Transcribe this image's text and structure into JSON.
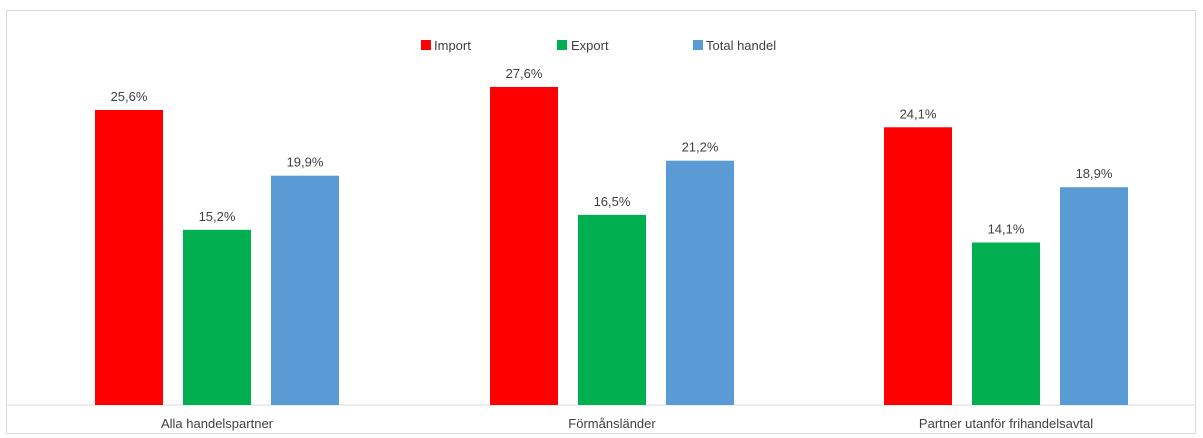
{
  "chart_data": {
    "type": "bar",
    "categories": [
      "Alla handelspartner",
      "Förmånsländer",
      "Partner utanför frihandelsavtal"
    ],
    "series": [
      {
        "name": "Import",
        "values": [
          25.6,
          27.6,
          24.1
        ],
        "labels": [
          "25,6%",
          "27,6%",
          "24,1%"
        ],
        "color": "#ff0000"
      },
      {
        "name": "Export",
        "values": [
          15.2,
          16.5,
          14.1
        ],
        "labels": [
          "15,2%",
          "16,5%",
          "14,1%"
        ],
        "color": "#00b050"
      },
      {
        "name": "Total handel",
        "values": [
          19.9,
          21.2,
          18.9
        ],
        "labels": [
          "19,9%",
          "21,2%",
          "18,9%"
        ],
        "color": "#5b9bd5"
      }
    ],
    "ylim": [
      0,
      30
    ],
    "grid": false,
    "legend_position": "top-center"
  }
}
